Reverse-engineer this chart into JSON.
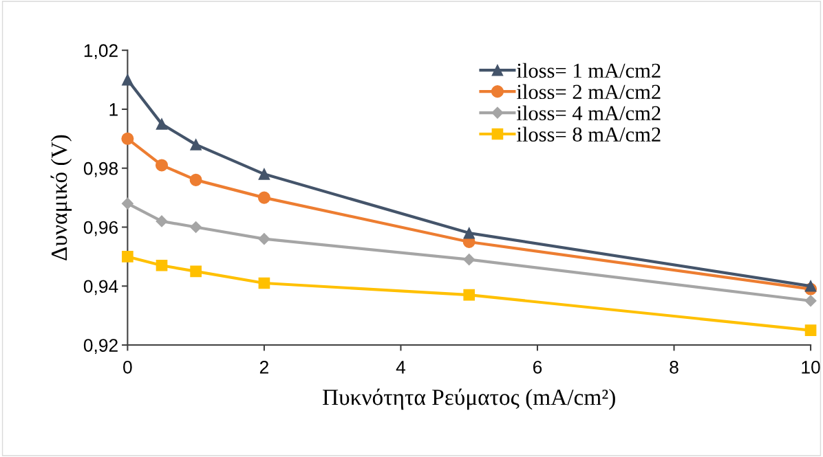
{
  "chart_data": {
    "type": "line",
    "xlabel": "Πυκνότητα Ρεύματος (mA/cm²)",
    "ylabel": "Δυναμικό (V)",
    "x": [
      0,
      0.5,
      1,
      2,
      5,
      10
    ],
    "series": [
      {
        "name": "iloss= 1 mA/cm2",
        "color": "#44546a",
        "marker": "triangle",
        "values": [
          1.01,
          0.995,
          0.988,
          0.978,
          0.958,
          0.94
        ]
      },
      {
        "name": "iloss= 2 mA/cm2",
        "color": "#ed7d31",
        "marker": "circle",
        "values": [
          0.99,
          0.981,
          0.976,
          0.97,
          0.955,
          0.939
        ]
      },
      {
        "name": "iloss= 4 mA/cm2",
        "color": "#a5a5a5",
        "marker": "diamond",
        "values": [
          0.968,
          0.962,
          0.96,
          0.956,
          0.949,
          0.935
        ]
      },
      {
        "name": "iloss= 8 mA/cm2",
        "color": "#ffc000",
        "marker": "square",
        "values": [
          0.95,
          0.947,
          0.945,
          0.941,
          0.937,
          0.925
        ]
      }
    ],
    "xlim": [
      0,
      10
    ],
    "xticks": [
      0,
      2,
      4,
      6,
      8,
      10
    ],
    "ylim": [
      0.92,
      1.02
    ],
    "yticks": [
      {
        "value": 0.92,
        "label": "0,92"
      },
      {
        "value": 0.94,
        "label": "0,94"
      },
      {
        "value": 0.96,
        "label": "0,96"
      },
      {
        "value": 0.98,
        "label": "0,98"
      },
      {
        "value": 1.0,
        "label": "1"
      },
      {
        "value": 1.02,
        "label": "1,02"
      }
    ],
    "grid": false,
    "legend": "top right",
    "line_style": "solid"
  }
}
